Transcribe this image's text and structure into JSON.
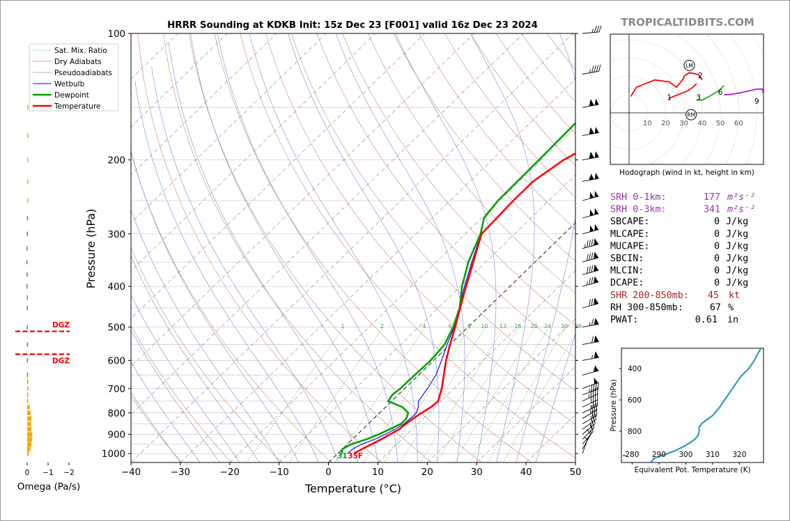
{
  "header": {
    "title": "HRRR Sounding at KDKB Init: 15z Dec 23 [F001] valid 16z Dec 23 2024",
    "watermark": "TROPICALTIDBITS.COM"
  },
  "chart_data": [
    {
      "id": "skewt",
      "type": "line",
      "xlabel": "Temperature (°C)",
      "ylabel": "Pressure (hPa)",
      "xlim": [
        -40,
        50
      ],
      "ylim": [
        1050,
        100
      ],
      "y_scale": "log",
      "x_ticks": [
        -40,
        -30,
        -20,
        -10,
        0,
        10,
        20,
        30,
        40,
        50
      ],
      "x_tick_labels": [
        "−40",
        "−30",
        "−20",
        "−10",
        "0",
        "10",
        "20",
        "30",
        "40",
        "50"
      ],
      "y_ticks": [
        100,
        200,
        300,
        400,
        500,
        600,
        700,
        800,
        900,
        1000
      ],
      "legend": {
        "placement": "upper-left",
        "entries": [
          "Sat. Mix. Ratio",
          "Dry Adiabats",
          "Pseudoadiabats",
          "Wetbulb",
          "Dewpoint",
          "Temperature"
        ]
      },
      "mixing_ratio_labels": [
        "1",
        "2",
        "4",
        "6",
        "8",
        "10",
        "13",
        "16",
        "20",
        "24",
        "30",
        "36"
      ],
      "series": [
        {
          "name": "Temperature",
          "color": "#ff0000",
          "p": [
            1000,
            975,
            950,
            925,
            900,
            875,
            850,
            825,
            800,
            775,
            750,
            700,
            650,
            600,
            550,
            500,
            450,
            400,
            350,
            300,
            250,
            225,
            200,
            175,
            150,
            125,
            100
          ],
          "t": [
            3.3,
            4.0,
            4.9,
            5.8,
            6.6,
            7.4,
            7.6,
            8.0,
            8.5,
            9.2,
            9.4,
            7.5,
            5.1,
            2.5,
            0.0,
            -2.6,
            -5.6,
            -8.9,
            -12.5,
            -16.7,
            -17.2,
            -17.2,
            -15.5,
            -11.5,
            -7.5,
            0.0,
            4.5
          ]
        },
        {
          "name": "Dewpoint",
          "color": "#00a000",
          "p": [
            1000,
            975,
            950,
            925,
            900,
            875,
            850,
            825,
            800,
            775,
            750,
            725,
            700,
            650,
            600,
            550,
            500,
            450,
            400,
            350,
            300,
            275,
            250,
            200,
            150,
            125,
            100
          ],
          "td": [
            0.8,
            0.0,
            0.8,
            2.8,
            4.3,
            5.5,
            6.6,
            6.6,
            5.8,
            3.4,
            -0.7,
            -1.2,
            -0.9,
            -0.8,
            -0.6,
            -1.1,
            -3.0,
            -5.7,
            -9.7,
            -13.5,
            -16.9,
            -19.5,
            -20.3,
            -20.5,
            -20.9,
            -19.5,
            -13.0
          ]
        },
        {
          "name": "Wetbulb",
          "color": "#0000ff",
          "p": [
            1000,
            975,
            950,
            925,
            900,
            875,
            850,
            825,
            800,
            775,
            750,
            700,
            650,
            600,
            550,
            500,
            450,
            400,
            350,
            300,
            250,
            225,
            200,
            175,
            150,
            125,
            100
          ],
          "tw": [
            2.0,
            2.1,
            2.9,
            4.5,
            5.6,
            6.6,
            7.2,
            7.4,
            7.5,
            6.6,
            5.4,
            4.6,
            3.5,
            1.6,
            -0.6,
            -2.8,
            -5.8,
            -9.2,
            -12.8,
            -16.8,
            -17.3,
            -17.3,
            -15.6,
            -11.6,
            -7.6,
            -0.1,
            4.3
          ]
        }
      ],
      "surface_labels": [
        {
          "text": "31",
          "color": "#00a000"
        },
        {
          "text": "35F",
          "color": "#ff0000"
        }
      ]
    },
    {
      "id": "omega",
      "type": "bar",
      "xlabel": "Omega (Pa/s)",
      "xlim": [
        0.3,
        -2
      ],
      "x_tick_labels": [
        "0",
        "−1",
        "−2"
      ],
      "dgz_label": "DGZ",
      "dgz_levels": [
        512,
        580
      ],
      "p": [
        1000,
        975,
        950,
        925,
        900,
        875,
        850,
        825,
        800,
        775,
        750,
        725,
        700,
        675,
        650,
        600,
        550,
        500,
        450,
        425,
        400,
        375,
        350,
        325,
        300,
        275,
        250,
        225,
        200,
        175,
        150
      ],
      "omega": [
        -0.08,
        -0.15,
        -0.2,
        -0.24,
        -0.24,
        -0.2,
        -0.18,
        -0.2,
        -0.16,
        -0.12,
        -0.05,
        -0.01,
        0.0,
        0.0,
        0.01,
        0.01,
        0.01,
        0.02,
        0.02,
        0.02,
        0.03,
        0.03,
        0.04,
        0.03,
        0.02,
        0.01,
        -0.01,
        -0.02,
        -0.02,
        -0.02,
        -0.01
      ],
      "colors": {
        "ascent": "#ffa500",
        "descent": "#808080",
        "dgz": "#ff0000"
      }
    },
    {
      "id": "hodograph",
      "type": "line",
      "caption": "Hodograph (wind in kt, height in km)",
      "ring_labels": [
        "10",
        "20",
        "30",
        "40",
        "50",
        "60"
      ],
      "markers": [
        {
          "text": "LM"
        },
        {
          "text": "RM"
        }
      ],
      "height_labels": [
        "1",
        "2",
        "3",
        "6",
        "9"
      ],
      "segments": [
        {
          "color": "#ff0000",
          "u": [
            1,
            4,
            14,
            22,
            26,
            30,
            30,
            33,
            38,
            40
          ],
          "v": [
            9,
            14,
            18,
            17,
            14,
            19,
            20,
            22,
            21,
            18
          ]
        },
        {
          "color": "#ff0000",
          "u": [
            22,
            27,
            32,
            35,
            37
          ],
          "v": [
            8,
            10,
            12,
            14,
            16
          ]
        },
        {
          "color": "#22aa22",
          "u": [
            37,
            40,
            44,
            49,
            52
          ],
          "v": [
            7,
            7,
            9,
            12,
            15
          ]
        },
        {
          "color": "#aa22cc",
          "u": [
            52,
            55,
            61,
            70,
            73,
            74
          ],
          "v": [
            10,
            10,
            11,
            13,
            13,
            9
          ]
        },
        {
          "color": "#2222ff",
          "u": [
            74,
            79,
            83
          ],
          "v": [
            3,
            3,
            2
          ]
        }
      ]
    },
    {
      "id": "theta_e",
      "type": "line",
      "xlabel": "Equivalent Pot. Temperature (K)",
      "ylabel": "Pressure (hPa)",
      "xlim": [
        276,
        329
      ],
      "ylim": [
        1000,
        270
      ],
      "x_ticks": [
        280,
        290,
        300,
        310,
        320
      ],
      "y_ticks": [
        400,
        600,
        800
      ],
      "series": [
        {
          "name": "theta-e",
          "color": "#3399bb",
          "p": [
            1000,
            975,
            950,
            925,
            900,
            875,
            850,
            825,
            800,
            775,
            750,
            725,
            700,
            650,
            600,
            550,
            500,
            450,
            400,
            350,
            300,
            270
          ],
          "theta_e": [
            287.0,
            288.0,
            292.0,
            296.0,
            299.0,
            301.5,
            303.5,
            304.7,
            305.0,
            305.0,
            306.0,
            308.0,
            310.0,
            312.5,
            314.5,
            316.5,
            318.5,
            320.5,
            323.5,
            325.5,
            327.0,
            328.0
          ]
        }
      ]
    },
    {
      "id": "winds",
      "type": "table",
      "columns": [
        "p",
        "direction_deg",
        "speed_kt"
      ],
      "rows": [
        [
          1000,
          200,
          5
        ],
        [
          975,
          210,
          10
        ],
        [
          950,
          220,
          15
        ],
        [
          925,
          225,
          20
        ],
        [
          900,
          230,
          25
        ],
        [
          875,
          235,
          30
        ],
        [
          850,
          240,
          30
        ],
        [
          825,
          240,
          35
        ],
        [
          800,
          245,
          35
        ],
        [
          775,
          245,
          40
        ],
        [
          750,
          245,
          45
        ],
        [
          725,
          250,
          45
        ],
        [
          700,
          250,
          50
        ],
        [
          650,
          255,
          55
        ],
        [
          600,
          260,
          65
        ],
        [
          550,
          260,
          70
        ],
        [
          500,
          260,
          75
        ],
        [
          450,
          255,
          80
        ],
        [
          400,
          255,
          85
        ],
        [
          375,
          255,
          90
        ],
        [
          350,
          255,
          90
        ],
        [
          325,
          255,
          95
        ],
        [
          300,
          255,
          100
        ],
        [
          275,
          255,
          100
        ],
        [
          250,
          255,
          100
        ],
        [
          225,
          260,
          105
        ],
        [
          200,
          260,
          110
        ],
        [
          175,
          260,
          110
        ],
        [
          150,
          260,
          110
        ],
        [
          125,
          260,
          45
        ],
        [
          100,
          265,
          35
        ]
      ]
    }
  ],
  "stats": {
    "rows": [
      {
        "label": "SRH 0-1km:",
        "value": "177",
        "unit": "m²s⁻²",
        "color": "#9933aa"
      },
      {
        "label": "SRH 0-3km:",
        "value": "341",
        "unit": "m²s⁻²",
        "color": "#9933aa"
      },
      {
        "label": "SBCAPE:",
        "value": "0",
        "unit": "J/kg",
        "color": "#000000"
      },
      {
        "label": "MLCAPE:",
        "value": "0",
        "unit": "J/kg",
        "color": "#000000"
      },
      {
        "label": "MUCAPE:",
        "value": "0",
        "unit": "J/kg",
        "color": "#000000"
      },
      {
        "label": "SBCIN:",
        "value": "0",
        "unit": "J/kg",
        "color": "#000000"
      },
      {
        "label": "MLCIN:",
        "value": "0",
        "unit": "J/kg",
        "color": "#000000"
      },
      {
        "label": "DCAPE:",
        "value": "0",
        "unit": "J/kg",
        "color": "#000000"
      },
      {
        "label": "SHR 200-850mb:",
        "value": "45",
        "unit": "kt",
        "color": "#aa2222"
      },
      {
        "label": "RH 300-850mb:",
        "value": "67",
        "unit": "%",
        "color": "#000000"
      },
      {
        "label": "PWAT:",
        "value": "0.61",
        "unit": "in",
        "color": "#000000"
      }
    ]
  }
}
